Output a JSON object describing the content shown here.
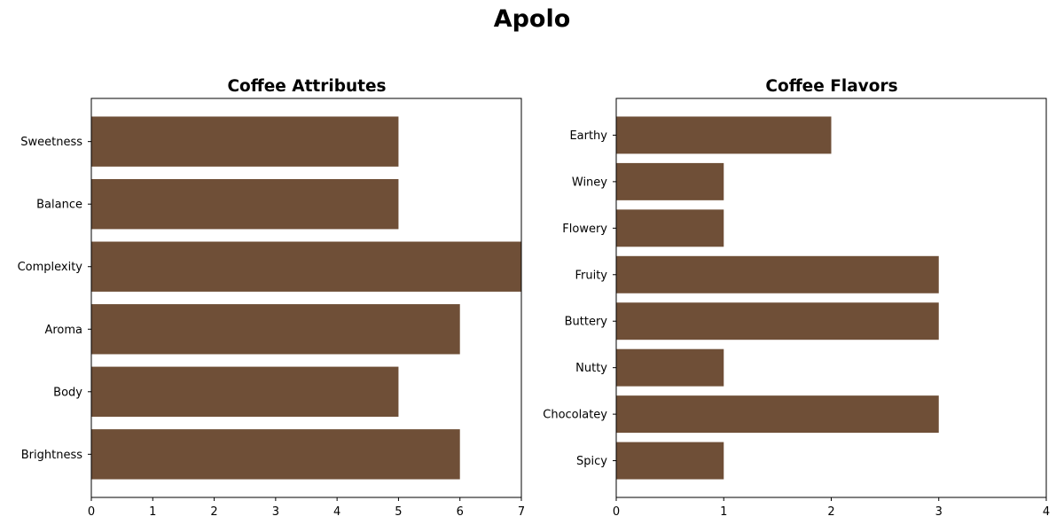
{
  "suptitle": "Apolo",
  "colors": {
    "bar": "#6f4f37"
  },
  "chart_data": [
    {
      "type": "bar",
      "orientation": "horizontal",
      "title": "Coffee Attributes",
      "categories": [
        "Brightness",
        "Body",
        "Aroma",
        "Complexity",
        "Balance",
        "Sweetness"
      ],
      "values": [
        6,
        5,
        6,
        7,
        5,
        5
      ],
      "xlim": [
        0,
        7
      ],
      "xticks": [
        0,
        1,
        2,
        3,
        4,
        5,
        6,
        7
      ],
      "xlabel": "",
      "ylabel": ""
    },
    {
      "type": "bar",
      "orientation": "horizontal",
      "title": "Coffee Flavors",
      "categories": [
        "Spicy",
        "Chocolatey",
        "Nutty",
        "Buttery",
        "Fruity",
        "Flowery",
        "Winey",
        "Earthy"
      ],
      "values": [
        1,
        3,
        1,
        3,
        3,
        1,
        1,
        2
      ],
      "xlim": [
        0,
        4
      ],
      "xticks": [
        0,
        1,
        2,
        3,
        4
      ],
      "xlabel": "",
      "ylabel": ""
    }
  ]
}
